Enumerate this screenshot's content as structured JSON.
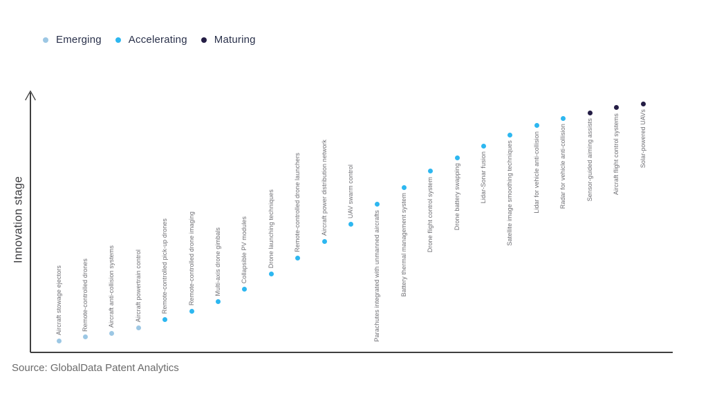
{
  "legend": {
    "items": [
      {
        "label": "Emerging",
        "color": "#9cc7e4"
      },
      {
        "label": "Accelerating",
        "color": "#2db7f0"
      },
      {
        "label": "Maturing",
        "color": "#241d45"
      }
    ]
  },
  "axis": {
    "y_label": "Innovation stage"
  },
  "source": "Source: GlobalData Patent Analytics",
  "chart_data": {
    "type": "scatter",
    "title": "",
    "xlabel": "",
    "ylabel": "Innovation stage",
    "grid": false,
    "legend_position": "top-left",
    "y_axis": {
      "style": "arrow",
      "numeric_ticks": false,
      "range_normalized": [
        0,
        1
      ]
    },
    "stage_colors": {
      "emerging": "#9cc7e4",
      "accelerating": "#2db7f0",
      "maturing": "#241d45"
    },
    "points": [
      {
        "label": "Aircraft stowage ejectors",
        "stage": "emerging",
        "score": 0.045,
        "label_side": "above"
      },
      {
        "label": "Remote-controlled drones",
        "stage": "emerging",
        "score": 0.059,
        "label_side": "above"
      },
      {
        "label": "Aircraft anti-collision systems",
        "stage": "emerging",
        "score": 0.073,
        "label_side": "above"
      },
      {
        "label": "Aircraft powertrain control",
        "stage": "emerging",
        "score": 0.095,
        "label_side": "above"
      },
      {
        "label": "Remote-controlled pick-up drones",
        "stage": "accelerating",
        "score": 0.127,
        "label_side": "above"
      },
      {
        "label": "Remote-controlled drone imaging",
        "stage": "accelerating",
        "score": 0.16,
        "label_side": "above"
      },
      {
        "label": "Multi-axis drone gimbals",
        "stage": "accelerating",
        "score": 0.197,
        "label_side": "above"
      },
      {
        "label": "Collapsible PV modules",
        "stage": "accelerating",
        "score": 0.245,
        "label_side": "above"
      },
      {
        "label": "Drone launching techniques",
        "stage": "accelerating",
        "score": 0.304,
        "label_side": "above"
      },
      {
        "label": "Remote-controlled drone launchers",
        "stage": "accelerating",
        "score": 0.365,
        "label_side": "above"
      },
      {
        "label": "Aircraft power distribution network",
        "stage": "accelerating",
        "score": 0.428,
        "label_side": "above"
      },
      {
        "label": "UAV swarm control",
        "stage": "accelerating",
        "score": 0.496,
        "label_side": "above"
      },
      {
        "label": "Parachutes integrated with unmanned aircrafts",
        "stage": "accelerating",
        "score": 0.571,
        "label_side": "below"
      },
      {
        "label": "Battery thermal management system",
        "stage": "accelerating",
        "score": 0.637,
        "label_side": "below"
      },
      {
        "label": "Drone flight control system",
        "stage": "accelerating",
        "score": 0.699,
        "label_side": "below"
      },
      {
        "label": "Drone battery swapping",
        "stage": "accelerating",
        "score": 0.751,
        "label_side": "below"
      },
      {
        "label": "Lidar-Sonar fusion",
        "stage": "accelerating",
        "score": 0.797,
        "label_side": "below"
      },
      {
        "label": "Satellite image smoothing techniques",
        "stage": "accelerating",
        "score": 0.84,
        "label_side": "below"
      },
      {
        "label": "Lidar for vehicle anti-collision",
        "stage": "accelerating",
        "score": 0.875,
        "label_side": "below"
      },
      {
        "label": "Radar for vehicle anti-collision",
        "stage": "accelerating",
        "score": 0.904,
        "label_side": "below"
      },
      {
        "label": "Sensor-guided aiming assists",
        "stage": "maturing",
        "score": 0.925,
        "label_side": "below"
      },
      {
        "label": "Aircraft flight control systems",
        "stage": "maturing",
        "score": 0.945,
        "label_side": "below"
      },
      {
        "label": "Solar-powered UAVs",
        "stage": "maturing",
        "score": 0.959,
        "label_side": "below"
      }
    ]
  }
}
